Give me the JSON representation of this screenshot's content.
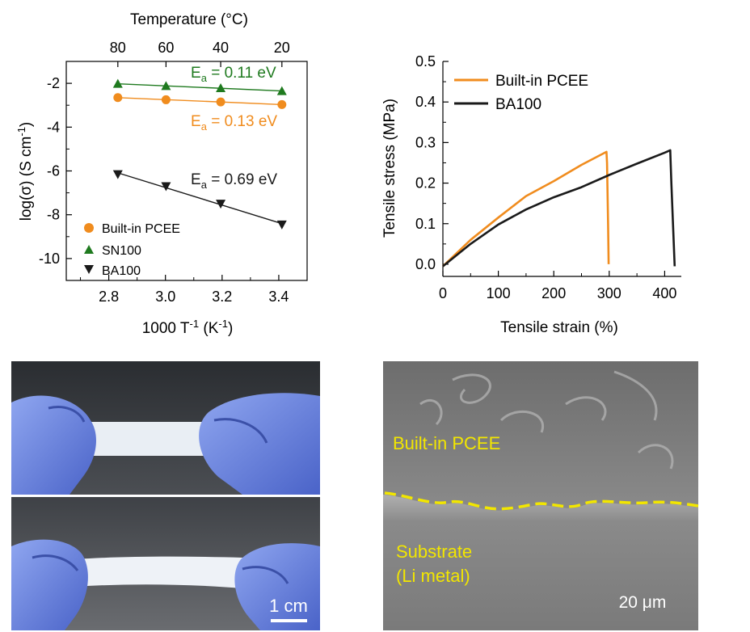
{
  "chart_data": [
    {
      "type": "scatter",
      "panel": "conductivity",
      "xlabel": "1000 T",
      "xlabel_sup": "-1",
      "xlabel_unit": "(K",
      "xlabel_unit_sup": "-1",
      "xlabel_close": ")",
      "ylabel_pre": "log(σ) (S cm",
      "ylabel_sup": "-1",
      "ylabel_close": ")",
      "top_axis_label": "Temperature (°C)",
      "top_ticks": [
        {
          "label": "80",
          "x": 2.832
        },
        {
          "label": "60",
          "x": 3.002
        },
        {
          "label": "40",
          "x": 3.195
        },
        {
          "label": "20",
          "x": 3.411
        }
      ],
      "xlim": [
        2.65,
        3.5
      ],
      "ylim": [
        -11,
        -1
      ],
      "x_ticks": [
        "2.8",
        "3.0",
        "3.2",
        "3.4"
      ],
      "y_ticks": [
        "-2",
        "-4",
        "-6",
        "-8",
        "-10"
      ],
      "x": [
        2.832,
        3.002,
        3.195,
        3.411
      ],
      "series": [
        {
          "name": "Built-in PCEE",
          "marker": "circle",
          "color": "#f08c1e",
          "values": [
            -2.65,
            -2.75,
            -2.85,
            -2.97
          ]
        },
        {
          "name": "SN100",
          "marker": "triangle-up",
          "color": "#1f7a1f",
          "values": [
            -2.02,
            -2.12,
            -2.22,
            -2.35
          ]
        },
        {
          "name": "BA100",
          "marker": "triangle-down",
          "color": "#1a1a1a",
          "values": [
            -6.15,
            -6.7,
            -7.5,
            -8.45
          ]
        }
      ],
      "annotations": [
        {
          "pre": "E",
          "sub": "a",
          "post": " = 0.11 eV",
          "color": "#1f7a1f",
          "series": "SN100"
        },
        {
          "pre": "E",
          "sub": "a",
          "post": " = 0.13 eV",
          "color": "#f08c1e",
          "series": "Built-in PCEE"
        },
        {
          "pre": "E",
          "sub": "a",
          "post": " = 0.69 eV",
          "color": "#1a1a1a",
          "series": "BA100"
        }
      ],
      "legend_position": "bottom-left"
    },
    {
      "type": "line",
      "panel": "tensile",
      "xlabel": "Tensile strain (%)",
      "ylabel": "Tensile stress (MPa)",
      "xlim": [
        0,
        430
      ],
      "ylim": [
        -0.03,
        0.5
      ],
      "x_ticks": [
        "0",
        "100",
        "200",
        "300",
        "400"
      ],
      "y_ticks": [
        "0.0",
        "0.1",
        "0.2",
        "0.3",
        "0.4",
        "0.5"
      ],
      "series": [
        {
          "name": "Built-in PCEE",
          "color": "#f08c1e",
          "x": [
            0,
            50,
            100,
            150,
            200,
            250,
            295,
            296,
            298,
            299
          ],
          "values": [
            -0.005,
            0.06,
            0.115,
            0.168,
            0.205,
            0.245,
            0.277,
            0.25,
            0.1,
            0.0
          ]
        },
        {
          "name": "BA100",
          "color": "#1a1a1a",
          "x": [
            0,
            50,
            100,
            150,
            200,
            250,
            300,
            350,
            400,
            410,
            412,
            415,
            418
          ],
          "values": [
            -0.005,
            0.05,
            0.098,
            0.135,
            0.165,
            0.19,
            0.22,
            0.248,
            0.275,
            0.281,
            0.2,
            0.1,
            -0.005
          ]
        }
      ],
      "legend_position": "top-left"
    }
  ],
  "photos": {
    "scale_bar_label": "1 cm"
  },
  "sem": {
    "label_top": "Built-in PCEE",
    "label_bottom_line1": "Substrate",
    "label_bottom_line2": "(Li metal)",
    "scale_label": "20 μm",
    "boundary_color": "#f2e600",
    "label_color": "#f2e600"
  }
}
